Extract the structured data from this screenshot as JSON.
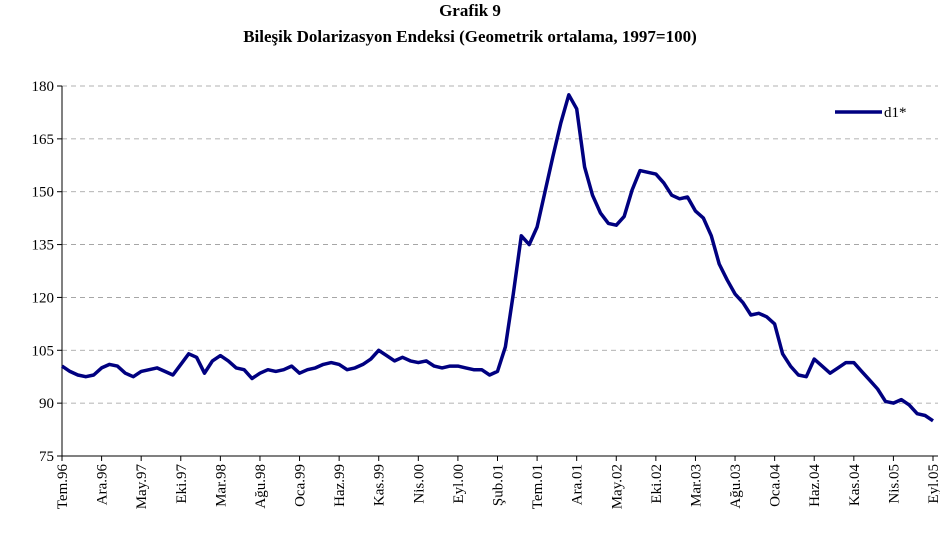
{
  "chart_data": {
    "type": "line",
    "title": "Grafik 9",
    "subtitle": "Bileşik Dolarizasyon Endeksi (Geometrik ortalama, 1997=100)",
    "categories": [
      "Tem.96",
      null,
      null,
      null,
      null,
      "Ara.96",
      null,
      null,
      null,
      null,
      "May.97",
      null,
      null,
      null,
      null,
      "Eki.97",
      null,
      null,
      null,
      null,
      "Mar.98",
      null,
      null,
      null,
      null,
      "Ağu.98",
      null,
      null,
      null,
      null,
      "Oca.99",
      null,
      null,
      null,
      null,
      "Haz.99",
      null,
      null,
      null,
      null,
      "Kas.99",
      null,
      null,
      null,
      null,
      "Nis.00",
      null,
      null,
      null,
      null,
      "Eyl.00",
      null,
      null,
      null,
      null,
      "Şub.01",
      null,
      null,
      null,
      null,
      "Tem.01",
      null,
      null,
      null,
      null,
      "Ara.01",
      null,
      null,
      null,
      null,
      "May.02",
      null,
      null,
      null,
      null,
      "Eki.02",
      null,
      null,
      null,
      null,
      "Mar.03",
      null,
      null,
      null,
      null,
      "Ağu.03",
      null,
      null,
      null,
      null,
      "Oca.04",
      null,
      null,
      null,
      null,
      "Haz.04",
      null,
      null,
      null,
      null,
      "Kas.04",
      null,
      null,
      null,
      null,
      "Nis.05",
      null,
      null,
      null,
      null,
      "Eyl.05"
    ],
    "series": [
      {
        "name": "d1*",
        "color": "#000080",
        "values": [
          100.5,
          99,
          98,
          97.5,
          98,
          100,
          101,
          100.5,
          98.5,
          97.5,
          99,
          99.5,
          100,
          99,
          98,
          101,
          104,
          103,
          98.5,
          102,
          103.5,
          102,
          100,
          99.5,
          97,
          98.5,
          99.5,
          99,
          99.5,
          100.5,
          98.5,
          99.5,
          100,
          101,
          101.5,
          101,
          99.5,
          100,
          101,
          102.5,
          105,
          103.5,
          102,
          103,
          102,
          101.5,
          102,
          100.5,
          100,
          100.5,
          100.5,
          100,
          99.5,
          99.5,
          98,
          99,
          106,
          121,
          137.5,
          135,
          140,
          150,
          160,
          169.5,
          177.5,
          173.5,
          157,
          149,
          144,
          141,
          140.5,
          143,
          150.5,
          156,
          155.5,
          155,
          152.5,
          149,
          148,
          148.5,
          144.5,
          142.5,
          137.5,
          129.5,
          125,
          121,
          118.5,
          115,
          115.5,
          114.5,
          112.5,
          104,
          100.5,
          98,
          97.5,
          102.5,
          100.5,
          98.5,
          100,
          101.5,
          101.5,
          99,
          96.5,
          94,
          90.5,
          90,
          91,
          89.5,
          87,
          86.5,
          85
        ]
      }
    ],
    "ylim": [
      75,
      180
    ],
    "yticks": [
      75,
      90,
      105,
      120,
      135,
      150,
      165,
      180
    ],
    "grid": true,
    "legend": "upper right"
  }
}
